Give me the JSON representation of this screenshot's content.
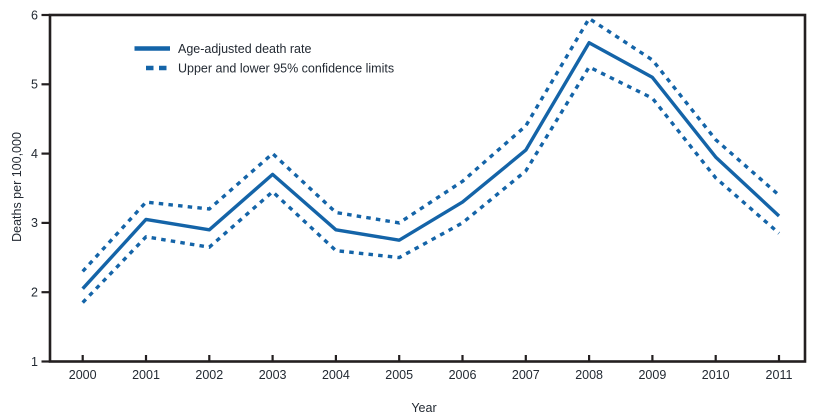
{
  "chart_data": {
    "type": "line",
    "title": "",
    "xlabel": "Year",
    "ylabel": "Deaths per 100,000",
    "x_ticks": [
      "2000",
      "2001",
      "2002",
      "2003",
      "2004",
      "2005",
      "2006",
      "2007",
      "2008",
      "2009",
      "2010",
      "2011"
    ],
    "y_ticks": [
      "1",
      "2",
      "3",
      "4",
      "5",
      "6"
    ],
    "ylim": [
      1,
      6
    ],
    "grid": false,
    "legend_position": "top-left-inside",
    "series": [
      {
        "name": "Age-adjusted death rate",
        "style": "solid",
        "values": [
          2.05,
          3.05,
          2.9,
          3.7,
          2.9,
          2.75,
          3.3,
          4.05,
          5.6,
          5.1,
          3.95,
          3.1
        ]
      },
      {
        "name": "Upper 95% confidence limit",
        "style": "dotted",
        "values": [
          2.3,
          3.3,
          3.2,
          4.0,
          3.15,
          3.0,
          3.6,
          4.4,
          5.95,
          5.35,
          4.2,
          3.4
        ]
      },
      {
        "name": "Lower 95% confidence limit",
        "style": "dotted",
        "values": [
          1.85,
          2.8,
          2.65,
          3.45,
          2.6,
          2.5,
          3.0,
          3.75,
          5.25,
          4.8,
          3.65,
          2.85
        ]
      }
    ],
    "legend": [
      {
        "label": "Age-adjusted death rate",
        "style": "solid"
      },
      {
        "label": "Upper and lower 95% confidence limits",
        "style": "dotted"
      }
    ],
    "colors": {
      "line": "#1464a8",
      "axis": "#231f20",
      "text": "#232a33"
    }
  }
}
